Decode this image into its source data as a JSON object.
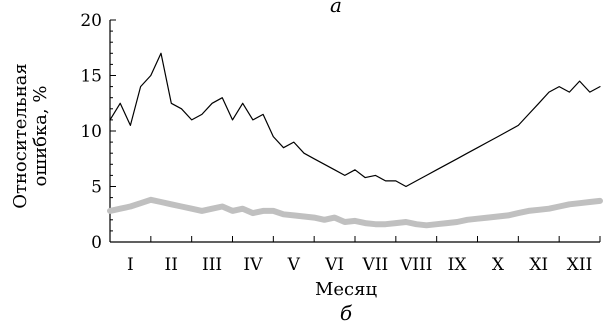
{
  "chart_data": {
    "type": "line",
    "panel_top": "а",
    "panel_bottom": "б",
    "ylabel_line1": "Относительная",
    "ylabel_line2": "ошибка, %",
    "xlabel": "Месяц",
    "ylim": [
      0,
      20
    ],
    "yticks": [
      "0",
      "5",
      "10",
      "15",
      "20"
    ],
    "xlim": [
      0,
      12
    ],
    "months": [
      "I",
      "II",
      "III",
      "IV",
      "V",
      "VI",
      "VII",
      "VIII",
      "IX",
      "X",
      "XI",
      "XII"
    ],
    "series": [
      {
        "color": "#000000",
        "x": [
          0.0,
          0.25,
          0.5,
          0.75,
          1.0,
          1.25,
          1.5,
          1.75,
          2.0,
          2.25,
          2.5,
          2.75,
          3.0,
          3.25,
          3.5,
          3.75,
          4.0,
          4.25,
          4.5,
          4.75,
          5.0,
          5.25,
          5.5,
          5.75,
          6.0,
          6.25,
          6.5,
          6.75,
          7.0,
          7.25,
          7.5,
          7.75,
          8.0,
          8.25,
          8.5,
          8.75,
          9.0,
          9.25,
          9.5,
          9.75,
          10.0,
          10.25,
          10.5,
          10.75,
          11.0,
          11.25,
          11.5,
          11.75,
          12.0
        ],
        "values": [
          11.0,
          12.5,
          10.5,
          14.0,
          15.0,
          17.0,
          12.5,
          12.0,
          11.0,
          11.5,
          12.5,
          13.0,
          11.0,
          12.5,
          11.0,
          11.5,
          9.5,
          8.5,
          9.0,
          8.0,
          7.5,
          7.0,
          6.5,
          6.0,
          6.5,
          5.8,
          6.0,
          5.5,
          5.5,
          5.0,
          5.5,
          6.0,
          6.5,
          7.0,
          7.5,
          8.0,
          8.5,
          9.0,
          9.5,
          10.0,
          10.5,
          11.5,
          12.5,
          13.5,
          14.0,
          13.5,
          14.5,
          13.5,
          14.0
        ]
      },
      {
        "color": "#c0c0c0",
        "x": [
          0.0,
          0.25,
          0.5,
          0.75,
          1.0,
          1.25,
          1.5,
          1.75,
          2.0,
          2.25,
          2.5,
          2.75,
          3.0,
          3.25,
          3.5,
          3.75,
          4.0,
          4.25,
          4.5,
          4.75,
          5.0,
          5.25,
          5.5,
          5.75,
          6.0,
          6.25,
          6.5,
          6.75,
          7.0,
          7.25,
          7.5,
          7.75,
          8.0,
          8.25,
          8.5,
          8.75,
          9.0,
          9.25,
          9.5,
          9.75,
          10.0,
          10.25,
          10.5,
          10.75,
          11.0,
          11.25,
          11.5,
          11.75,
          12.0
        ],
        "values": [
          2.8,
          3.0,
          3.2,
          3.5,
          3.8,
          3.6,
          3.4,
          3.2,
          3.0,
          2.8,
          3.0,
          3.2,
          2.8,
          3.0,
          2.6,
          2.8,
          2.8,
          2.5,
          2.4,
          2.3,
          2.2,
          2.0,
          2.2,
          1.8,
          1.9,
          1.7,
          1.6,
          1.6,
          1.7,
          1.8,
          1.6,
          1.5,
          1.6,
          1.7,
          1.8,
          2.0,
          2.1,
          2.2,
          2.3,
          2.4,
          2.6,
          2.8,
          2.9,
          3.0,
          3.2,
          3.4,
          3.5,
          3.6,
          3.7
        ]
      }
    ]
  }
}
